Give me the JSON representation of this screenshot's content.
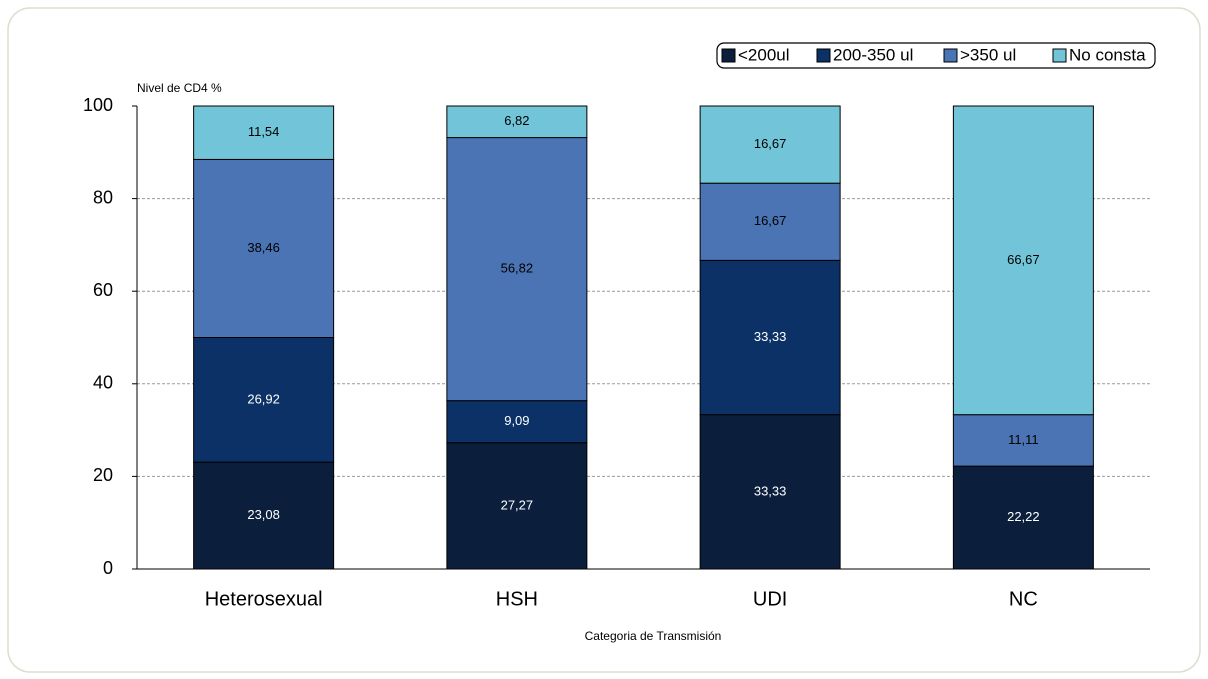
{
  "chart_data": {
    "type": "stacked_bar",
    "y_label": "Nivel de CD4 %",
    "x_label": "Categoria de Transmisión",
    "categories": [
      "Heterosexual",
      "HSH",
      "UDI",
      "NC"
    ],
    "series": [
      {
        "name": "<200ul",
        "color": "#0b1f3d",
        "values": [
          23.08,
          27.27,
          33.33,
          22.22
        ],
        "value_labels": [
          "23,08",
          "27,27",
          "33,33",
          "22,22"
        ]
      },
      {
        "name": "200-350 ul",
        "color": "#0b3166",
        "values": [
          26.92,
          9.09,
          33.33,
          null
        ],
        "value_labels": [
          "26,92",
          "9,09",
          "33,33",
          null
        ]
      },
      {
        "name": ">350 ul",
        "color": "#4a74b4",
        "values": [
          38.46,
          56.82,
          16.67,
          11.11
        ],
        "value_labels": [
          "38,46",
          "56,82",
          "16,67",
          "11,11"
        ]
      },
      {
        "name": "No consta",
        "color": "#72c5d8",
        "values": [
          11.54,
          6.82,
          16.67,
          66.67
        ],
        "value_labels": [
          "11,54",
          "6,82",
          "16,67",
          "66,67"
        ]
      }
    ],
    "ylim": [
      0,
      100
    ],
    "yticks": [
      0,
      20,
      40,
      60,
      80,
      100
    ],
    "grid": true,
    "legend": "top-right"
  }
}
